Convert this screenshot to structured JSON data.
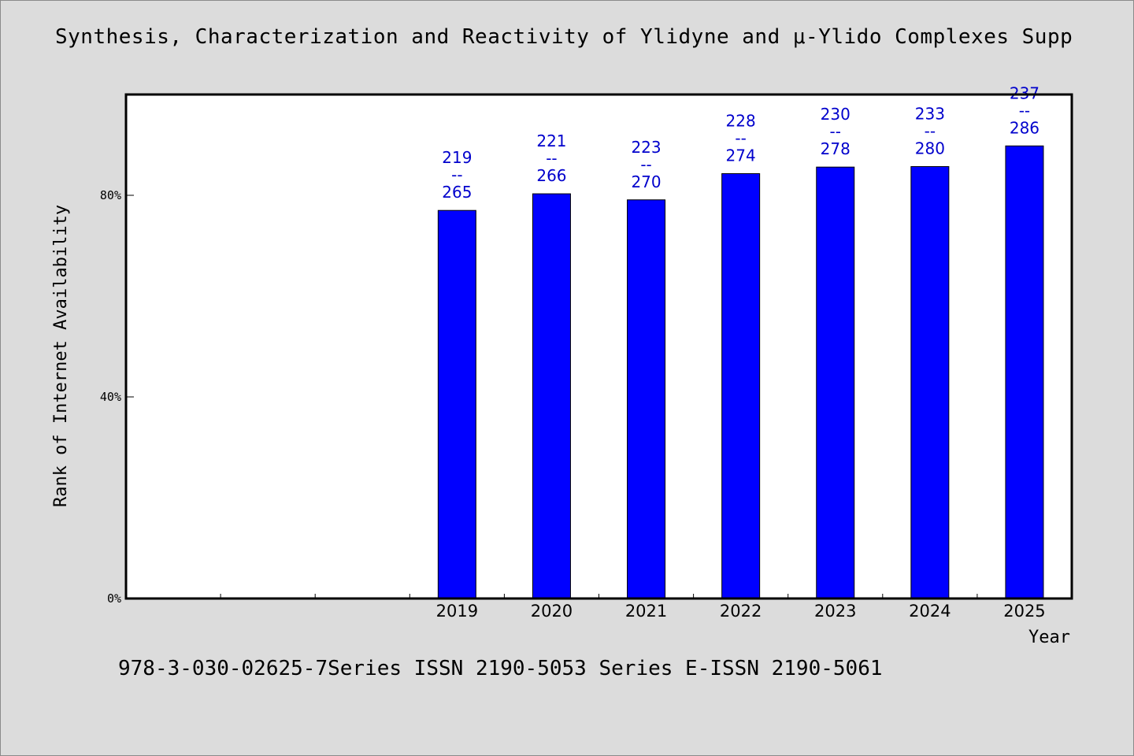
{
  "title": "Synthesis, Characterization and Reactivity of Ylidyne and μ-Ylido Complexes Supp",
  "footer": "978-3-030-02625-7Series ISSN 2190-5053 Series E-ISSN 2190-5061",
  "chart_data": {
    "type": "bar",
    "title": "Synthesis, Characterization and Reactivity of Ylidyne and μ-Ylido Complexes Supp",
    "xlabel": "Year",
    "ylabel": "Rank of Internet Availability",
    "categories": [
      "",
      "",
      "",
      "2019",
      "2020",
      "2021",
      "2022",
      "2023",
      "2024",
      "2025"
    ],
    "values": [
      null,
      null,
      null,
      77,
      80.3,
      79.1,
      84.3,
      85.6,
      85.7,
      89.8
    ],
    "bar_labels": [
      null,
      null,
      null,
      [
        "219",
        "--",
        "265"
      ],
      [
        "221",
        "--",
        "266"
      ],
      [
        "223",
        "--",
        "270"
      ],
      [
        "228",
        "--",
        "274"
      ],
      [
        "230",
        "--",
        "278"
      ],
      [
        "233",
        "--",
        "280"
      ],
      [
        "237",
        "--",
        "286"
      ]
    ],
    "yticks": [
      {
        "value": 0,
        "label": "0%"
      },
      {
        "value": 40,
        "label": "40%"
      },
      {
        "value": 80,
        "label": "80%"
      }
    ],
    "ylim": [
      0,
      100
    ],
    "bar_color": "#0000ff",
    "label_color": "#0000cc",
    "grid": false
  }
}
